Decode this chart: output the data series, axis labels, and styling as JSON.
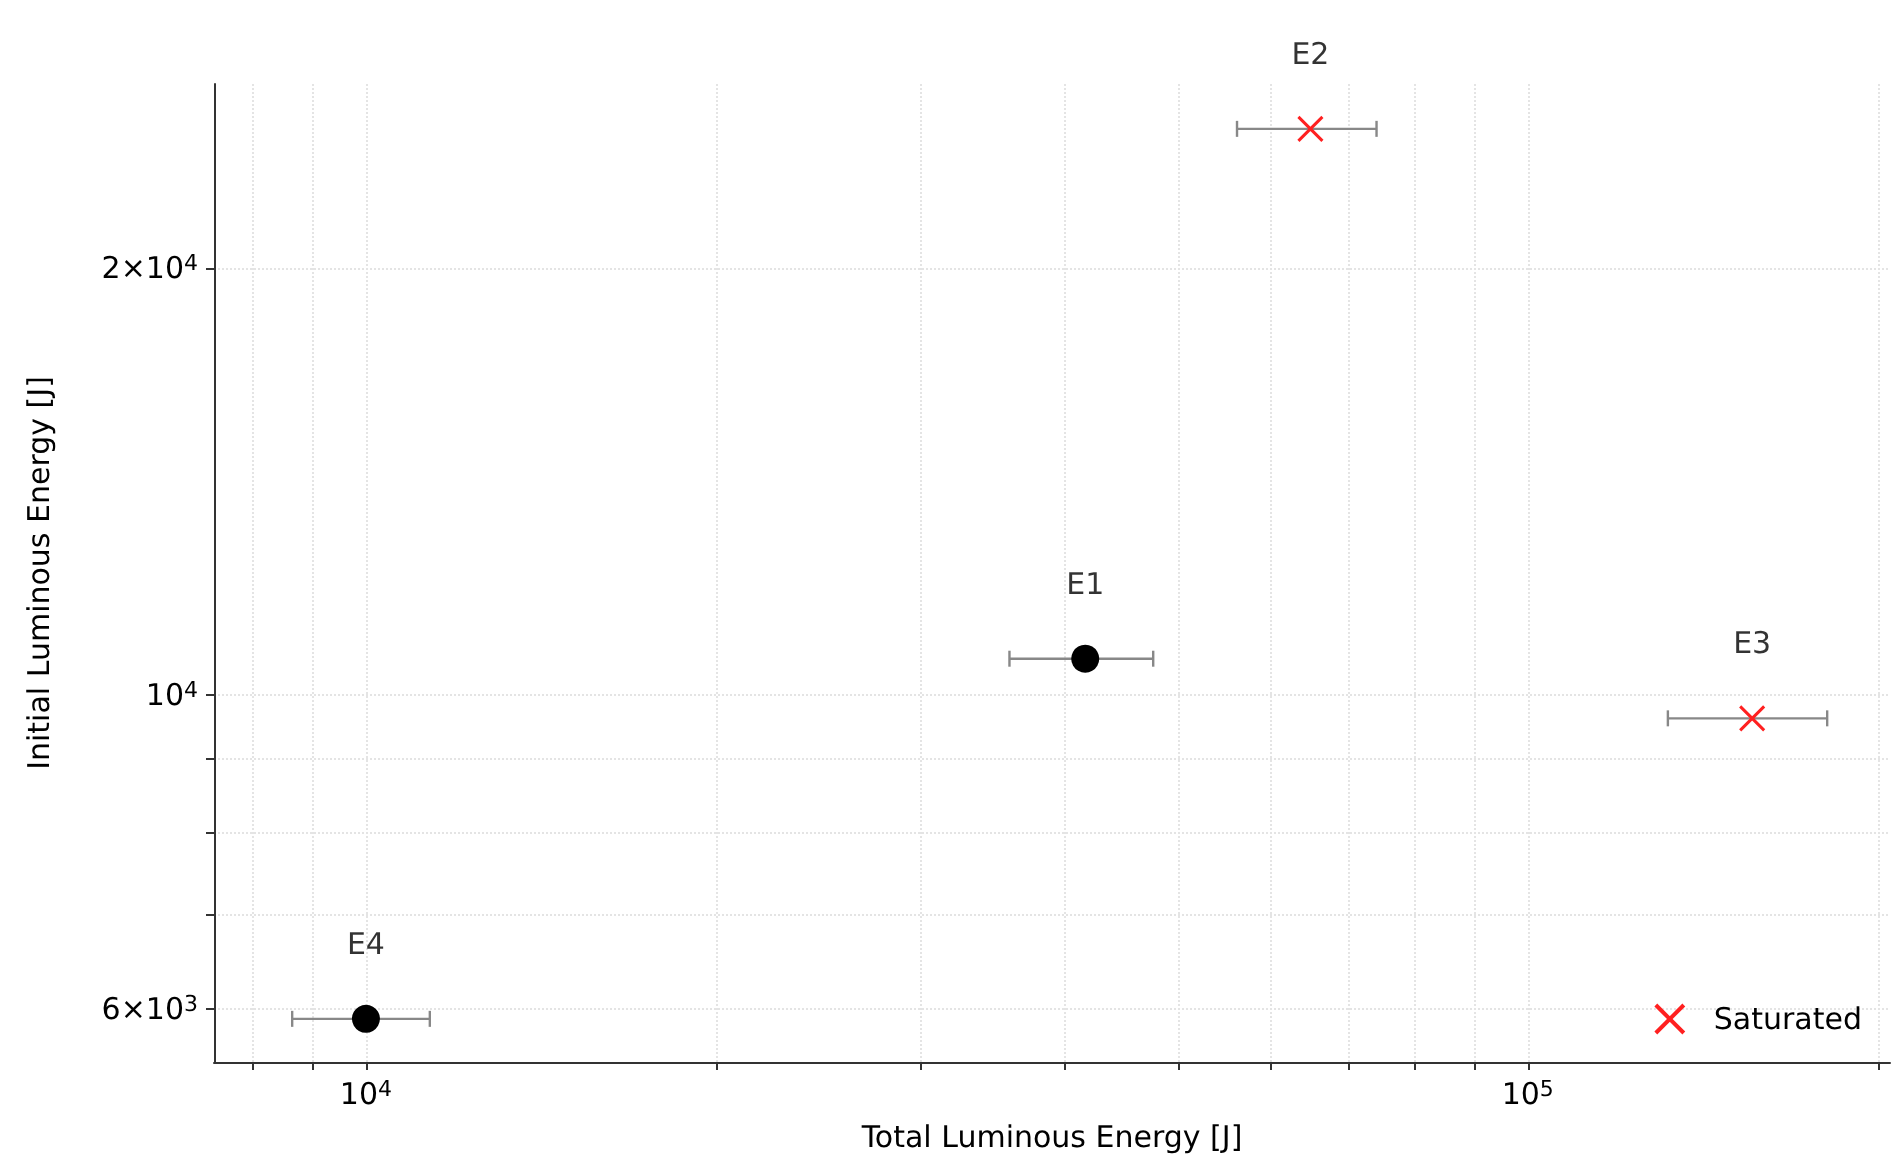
{
  "chart_data": {
    "type": "scatter",
    "xlabel": "Total Luminous Energy [J]",
    "ylabel": "Initial Luminous Energy [J]",
    "log": "xy",
    "grid": true,
    "legend": "bottom right",
    "xlim": [
      7400,
      205000
    ],
    "ylim": [
      5500,
      27000
    ],
    "xticks": [
      {
        "value": 8000,
        "label": null
      },
      {
        "value": 9000,
        "label": null
      },
      {
        "value": 10000,
        "label": "10$^{4}$"
      },
      {
        "value": 20000,
        "label": null
      },
      {
        "value": 30000,
        "label": null
      },
      {
        "value": 40000,
        "label": null
      },
      {
        "value": 50000,
        "label": null
      },
      {
        "value": 60000,
        "label": null
      },
      {
        "value": 70000,
        "label": null
      },
      {
        "value": 80000,
        "label": null
      },
      {
        "value": 90000,
        "label": null
      },
      {
        "value": 100000,
        "label": "10$^{5}$"
      },
      {
        "value": 200000,
        "label": null
      }
    ],
    "yticks": [
      {
        "value": 6000,
        "label": "6×10$^{3}$"
      },
      {
        "value": 7000,
        "label": null
      },
      {
        "value": 8000,
        "label": null
      },
      {
        "value": 9000,
        "label": null
      },
      {
        "value": 10000,
        "label": "10$^{4}$"
      },
      {
        "value": 20000,
        "label": "2×10$^{4}$"
      }
    ],
    "series": [
      {
        "color": "#000000",
        "marker": "circle",
        "x": [
          41600,
          10000
        ],
        "values": [
          10600,
          5900
        ],
        "xerrors": [
          [
            35800,
            47600
          ],
          [
            8640,
            11350
          ]
        ]
      },
      {
        "name": "Saturated",
        "color": "#ff2020",
        "marker": "cross",
        "x": [
          65000,
          156000
        ],
        "values": [
          25100,
          9620
        ],
        "xerrors": [
          [
            56200,
            74100
          ],
          [
            132000,
            181000
          ]
        ]
      }
    ],
    "annotations": [
      {
        "text": "E1",
        "x": 41600,
        "y": 10600
      },
      {
        "text": "E2",
        "x": 65000,
        "y": 25100
      },
      {
        "text": "E3",
        "x": 156000,
        "y": 9620
      },
      {
        "text": "E4",
        "x": 10000,
        "y": 5900
      }
    ]
  }
}
